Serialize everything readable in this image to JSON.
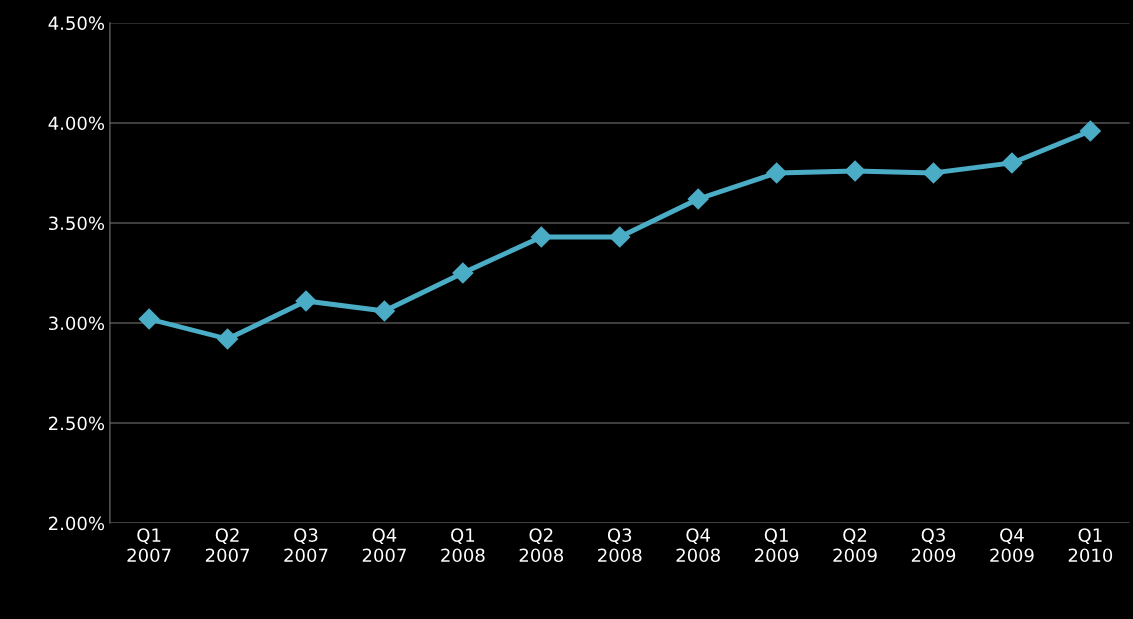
{
  "chart_data": {
    "type": "line",
    "categories": [
      "Q1\n2007",
      "Q2\n2007",
      "Q3\n2007",
      "Q4\n2007",
      "Q1\n2008",
      "Q2\n2008",
      "Q3\n2008",
      "Q4\n2008",
      "Q1\n2009",
      "Q2\n2009",
      "Q3\n2009",
      "Q4\n2009",
      "Q1\n2010"
    ],
    "series": [
      {
        "color": "#4bacc6",
        "values": [
          3.02,
          2.92,
          3.11,
          3.06,
          3.25,
          3.43,
          3.43,
          3.62,
          3.75,
          3.76,
          3.75,
          3.8,
          3.96
        ]
      }
    ],
    "ylim": [
      2.0,
      4.5
    ],
    "yticks": [
      {
        "value": 2.0,
        "label": "2.00%"
      },
      {
        "value": 2.5,
        "label": "2.50%"
      },
      {
        "value": 3.0,
        "label": "3.00%"
      },
      {
        "value": 3.5,
        "label": "3.50%"
      },
      {
        "value": 4.0,
        "label": "4.00%"
      },
      {
        "value": 4.5,
        "label": "4.50%"
      }
    ],
    "grid": "y",
    "marker": "diamond",
    "line_style": "solid"
  }
}
